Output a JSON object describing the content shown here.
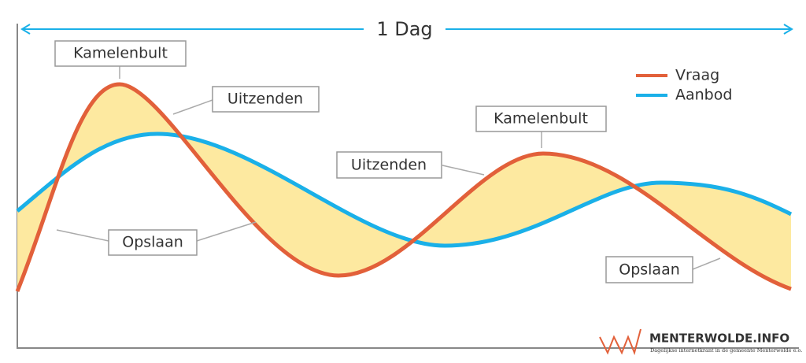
{
  "span_label": "1 Dag",
  "labels": {
    "peak_1": "Kamelenbult",
    "send_1": "Uitzenden",
    "store_1": "Opslaan",
    "peak_2": "Kamelenbult",
    "send_2": "Uitzenden",
    "store_2": "Opslaan"
  },
  "legend": [
    {
      "name": "Vraag"
    },
    {
      "name": "Aanbod"
    }
  ],
  "logo": {
    "name": "MENTERWOLDE.INFO",
    "tagline": "Dagelijkse internetkrant in de gemeente Menterwolde e.o."
  }
}
